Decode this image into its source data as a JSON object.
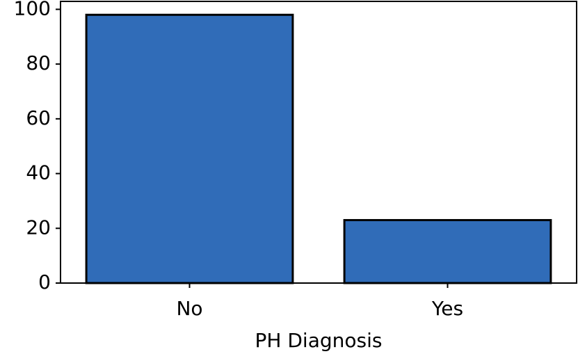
{
  "chart_data": {
    "type": "bar",
    "x_label": "PH Diagnosis",
    "categories": [
      "No",
      "Yes"
    ],
    "values": [
      98,
      23
    ],
    "color": "#306cb8",
    "edgecolor": "#000000",
    "ylim": [
      0,
      102.9
    ],
    "yticks": [
      0,
      20,
      40,
      60,
      80,
      100
    ],
    "grid": false
  }
}
